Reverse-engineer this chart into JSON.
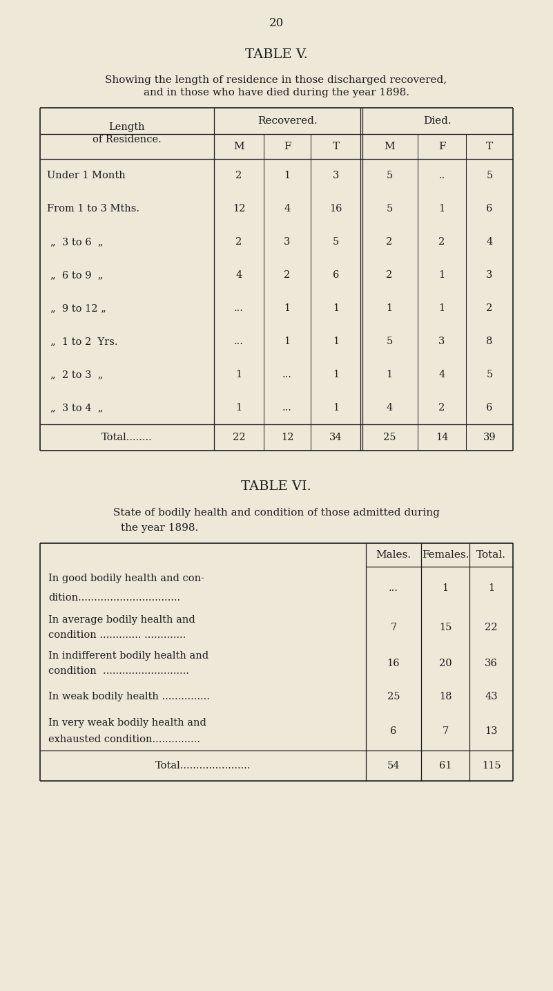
{
  "bg_color": "#ede8d8",
  "page_number": "20",
  "table5_title": "TABLE V.",
  "table5_subtitle_line1": "Showing the length of residence in those discharged recovered,",
  "table5_subtitle_line2": "and in those who have died during the year 1898.",
  "table5_rows": [
    [
      "Under 1 Month",
      "2",
      "1",
      "3",
      "5",
      "..",
      "5"
    ],
    [
      "From 1 to 3 Mths.",
      "12",
      "4",
      "16",
      "5",
      "1",
      "6"
    ],
    [
      "„  3 to 6  „",
      "2",
      "3",
      "5",
      "2",
      "2",
      "4"
    ],
    [
      "„  6 to 9  „",
      "4",
      "2",
      "6",
      "2",
      "1",
      "3"
    ],
    [
      "„  9 to 12 „",
      "...",
      "1",
      "1",
      "1",
      "1",
      "2"
    ],
    [
      "„  1 to 2  Yrs.",
      "...",
      "1",
      "1",
      "5",
      "3",
      "8"
    ],
    [
      "„  2 to 3  „",
      "1",
      "...",
      "1",
      "1",
      "4",
      "5"
    ],
    [
      "„  3 to 4  „",
      "1",
      "...",
      "1",
      "4",
      "2",
      "6"
    ],
    [
      "Total........",
      "22",
      "12",
      "34",
      "25",
      "14",
      "39"
    ]
  ],
  "table6_title": "TABLE VI.",
  "table6_subtitle_line1": "State of bodily health and condition of those admitted during",
  "table6_subtitle_line2": "the year 1898.",
  "table6_rows_labels": [
    [
      "In good bodily health and con-",
      "dition................................"
    ],
    [
      "In average bodily health and",
      "condition ............. ............."
    ],
    [
      "In indifferent bodily health and",
      "condition  ..........................."
    ],
    [
      "In weak bodily health ..............."
    ],
    [
      "In very weak bodily health and",
      "exhausted condition..............."
    ],
    [
      "Total......................"
    ]
  ],
  "table6_rows_vals": [
    [
      "...",
      "1",
      "1"
    ],
    [
      "7",
      "15",
      "22"
    ],
    [
      "16",
      "20",
      "36"
    ],
    [
      "25",
      "18",
      "43"
    ],
    [
      "6",
      "7",
      "13"
    ],
    [
      "54",
      "61",
      "115"
    ]
  ],
  "text_color": "#1c1c1c",
  "line_color": "#1c1c1c"
}
